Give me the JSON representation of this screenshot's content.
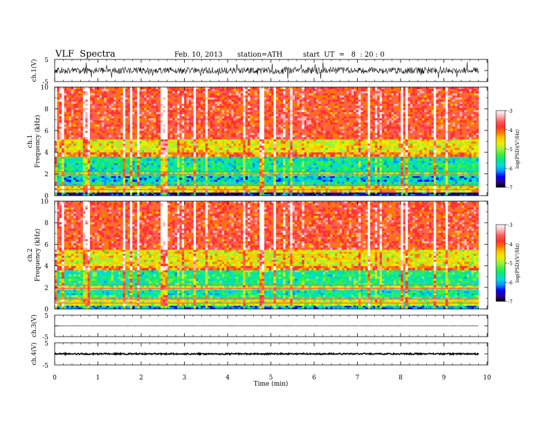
{
  "header": {
    "title": "VLF  Spectra",
    "date": "Feb. 10, 2013",
    "station": "station=ATH",
    "start": "start  UT  =   8  : 20 : 0"
  },
  "colors": {
    "colormap": [
      "#000000",
      "#2d0096",
      "#0000ff",
      "#0096ff",
      "#00dcdc",
      "#00e68c",
      "#3cf03c",
      "#a0f03c",
      "#e6f000",
      "#ffc800",
      "#ff7800",
      "#ff3232",
      "#ff5a5a",
      "#ffb4b4",
      "#ffffff"
    ],
    "axis": "#000000"
  },
  "chart_data": [
    {
      "type": "line",
      "name": "ch1-waveform",
      "ylabel": "ch.1(V)",
      "ylim": [
        -5,
        5
      ],
      "yticks": [
        "5",
        "-5"
      ],
      "xlim": [
        0,
        10
      ],
      "description_values": {
        "mean": 0,
        "amplitude_typical": 1.5,
        "amplitude_peak": 4
      }
    },
    {
      "type": "heatmap",
      "name": "ch1-spectrogram",
      "ylabel_top": "ch.1",
      "ylabel": "Frequency  (kHz)",
      "ylim": [
        0,
        10
      ],
      "yticks": [
        "0",
        "2",
        "4",
        "6",
        "8",
        "10"
      ],
      "xlim": [
        0,
        9.8
      ],
      "colorbar": {
        "label": "log(PSD)(V²/Hz)",
        "ticks": [
          "-3",
          "-4",
          "-5",
          "-6",
          "-7"
        ],
        "range": [
          -7,
          -3
        ]
      },
      "bands_kHz_logPSD": [
        [
          0.0,
          0.3,
          -6.5
        ],
        [
          0.3,
          0.9,
          -4.6
        ],
        [
          0.9,
          1.3,
          -5.6
        ],
        [
          1.3,
          1.8,
          -5.9
        ],
        [
          1.8,
          2.2,
          -5.3
        ],
        [
          2.2,
          3.6,
          -5.6
        ],
        [
          3.6,
          4.0,
          -4.2
        ],
        [
          4.0,
          5.2,
          -4.7
        ],
        [
          5.2,
          10.0,
          -3.9
        ]
      ]
    },
    {
      "type": "heatmap",
      "name": "ch2-spectrogram",
      "ylabel_top": "ch.2",
      "ylabel": "Frequency  (kHz)",
      "ylim": [
        0,
        10
      ],
      "yticks": [
        "0",
        "2",
        "4",
        "6",
        "8",
        "10"
      ],
      "xlim": [
        0,
        9.8
      ],
      "colorbar": {
        "label": "log(PSD)(V²/Hz)",
        "ticks": [
          "-3",
          "-4",
          "-5",
          "-6",
          "-7"
        ],
        "range": [
          -7,
          -3
        ]
      },
      "bands_kHz_logPSD": [
        [
          0.0,
          0.3,
          -6.0
        ],
        [
          0.3,
          0.9,
          -4.8
        ],
        [
          0.9,
          1.3,
          -5.4
        ],
        [
          1.3,
          1.8,
          -5.6
        ],
        [
          1.8,
          2.2,
          -5.0
        ],
        [
          2.2,
          3.6,
          -5.5
        ],
        [
          3.6,
          4.0,
          -4.2
        ],
        [
          4.0,
          5.5,
          -4.7
        ],
        [
          5.5,
          10.0,
          -3.9
        ]
      ]
    },
    {
      "type": "line",
      "name": "ch3-waveform",
      "ylabel": "ch.3(V)",
      "ylim": [
        -5,
        5
      ],
      "yticks": [
        "5",
        "-5"
      ],
      "xlim": [
        0,
        10
      ],
      "description_values": {
        "mean": 0,
        "amplitude_typical": 0.05
      }
    },
    {
      "type": "line",
      "name": "ch4-waveform",
      "ylabel": "ch.4(V)",
      "ylim": [
        -5,
        5
      ],
      "yticks": [
        "5",
        "-5"
      ],
      "xlim": [
        0,
        10
      ],
      "description_values": {
        "mean": 0,
        "amplitude_typical": 0.3
      }
    }
  ],
  "xaxis": {
    "label": "Time  (min)",
    "ticks": [
      "0",
      "1",
      "2",
      "3",
      "4",
      "5",
      "6",
      "7",
      "8",
      "9",
      "10"
    ]
  }
}
